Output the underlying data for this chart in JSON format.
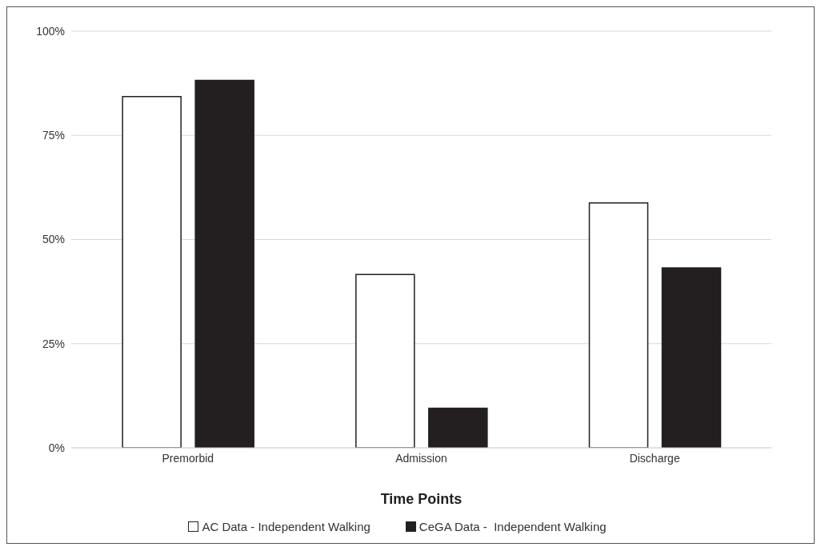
{
  "chart_data": {
    "type": "bar",
    "xlabel": "Time Points",
    "categories": [
      "Premorbid",
      "Admission",
      "Discharge"
    ],
    "series": [
      {
        "name": "AC Data - Independent Walking",
        "color": "#ffffff",
        "values": [
          84.3,
          41.6,
          58.8
        ]
      },
      {
        "name": "CeGA Data -  Independent Walking",
        "color": "#231f20",
        "values": [
          88.2,
          9.5,
          43.2
        ]
      }
    ],
    "ylim": [
      0,
      100
    ],
    "yticks": [
      {
        "value": 0,
        "label": "0%"
      },
      {
        "value": 25,
        "label": "25%"
      },
      {
        "value": 50,
        "label": "50%"
      },
      {
        "value": 75,
        "label": "75%"
      },
      {
        "value": 100,
        "label": "100%"
      }
    ],
    "grid": "y",
    "legend": "bottom"
  }
}
